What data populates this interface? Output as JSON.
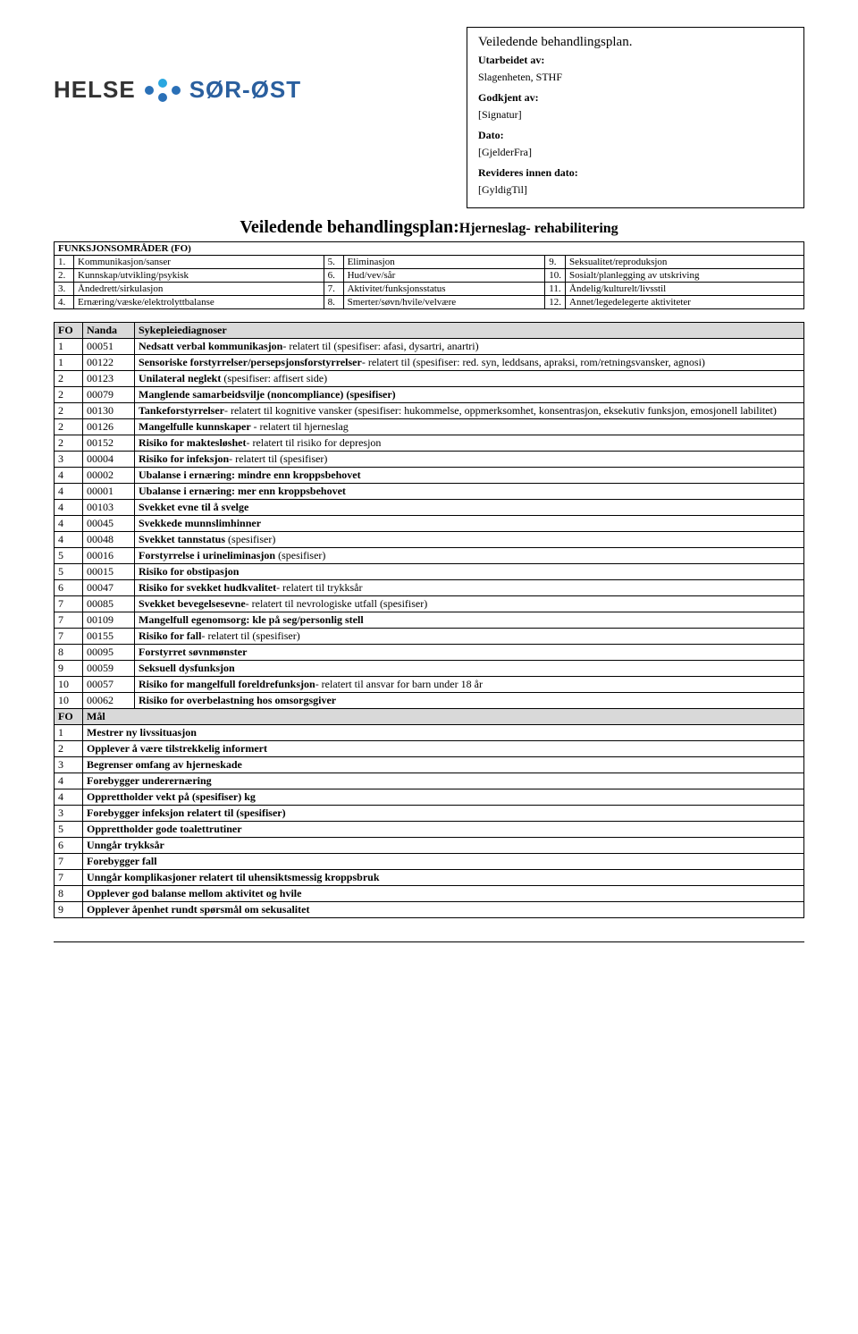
{
  "meta": {
    "title_line": "Veiledende behandlingsplan.",
    "utarbeidet_label": "Utarbeidet av:",
    "utarbeidet_val": "Slagenheten, STHF",
    "godkjent_label": "Godkjent av:",
    "godkjent_val": "[Signatur]",
    "dato_label": "Dato:",
    "dato_val": "[GjelderFra]",
    "revideres_label": "Revideres innen dato:",
    "revideres_val": "[GyldigTil]"
  },
  "logo": {
    "helse": "HELSE",
    "sorost": "SØR-ØST",
    "dot_colors": {
      "primary": "#2a70b7",
      "accent": "#2aa7e0"
    }
  },
  "main_title": {
    "prefix": "Veiledende behandlingsplan:",
    "suffix": "Hjerneslag- rehabilitering"
  },
  "fo_header": "FUNKSJONSOMRÅDER (FO)",
  "fo_rows": [
    [
      "1.",
      "Kommunikasjon/sanser",
      "5.",
      "Eliminasjon",
      "9.",
      "Seksualitet/reproduksjon"
    ],
    [
      "2.",
      "Kunnskap/utvikling/psykisk",
      "6.",
      "Hud/vev/sår",
      "10.",
      "Sosialt/planlegging av utskriving"
    ],
    [
      "3.",
      "Åndedrett/sirkulasjon",
      "7.",
      "Aktivitet/funksjonsstatus",
      "11.",
      "Åndelig/kulturelt/livsstil"
    ],
    [
      "4.",
      "Ernæring/væske/elektrolyttbalanse",
      "8.",
      "Smerter/søvn/hvile/velvære",
      "12.",
      "Annet/legedelegerte aktiviteter"
    ]
  ],
  "diag_headers": {
    "fo": "FO",
    "nanda": "Nanda",
    "syk": "Sykepleiediagnoser"
  },
  "diagnoses": [
    {
      "fo": "1",
      "code": "00051",
      "bold": "Nedsatt verbal kommunikasjon",
      "rest": "- relatert til (spesifiser: afasi, dysartri, anartri)"
    },
    {
      "fo": "1",
      "code": "00122",
      "bold": "Sensoriske forstyrrelser/persepsjonsforstyrrelser",
      "rest": "- relatert til (spesifiser: red. syn, leddsans, apraksi, rom/retningsvansker, agnosi)"
    },
    {
      "fo": "2",
      "code": "00123",
      "bold": "Unilateral neglekt ",
      "rest": "(spesifiser: affisert side)"
    },
    {
      "fo": "2",
      "code": "00079",
      "bold": "Manglende samarbeidsvilje (noncompliance) (spesifiser)",
      "rest": ""
    },
    {
      "fo": "2",
      "code": "00130",
      "bold": "Tankeforstyrrelser",
      "rest": "- relatert til kognitive vansker (spesifiser: hukommelse, oppmerksomhet, konsentrasjon, eksekutiv funksjon, emosjonell labilitet)"
    },
    {
      "fo": "2",
      "code": "00126",
      "bold": "Mangelfulle kunnskaper ",
      "rest": "- relatert til hjerneslag"
    },
    {
      "fo": "2",
      "code": "00152",
      "bold": "Risiko for maktesløshet",
      "rest": "- relatert til risiko for depresjon"
    },
    {
      "fo": "3",
      "code": "00004",
      "bold": "Risiko for infeksjon",
      "rest": "- relatert til (spesifiser)"
    },
    {
      "fo": "4",
      "code": "00002",
      "bold": "Ubalanse i ernæring: mindre enn kroppsbehovet",
      "rest": ""
    },
    {
      "fo": "4",
      "code": "00001",
      "bold": "Ubalanse i ernæring: mer enn kroppsbehovet",
      "rest": ""
    },
    {
      "fo": "4",
      "code": "00103",
      "bold": "Svekket evne til å svelge",
      "rest": ""
    },
    {
      "fo": "4",
      "code": "00045",
      "bold": "Svekkede munnslimhinner",
      "rest": ""
    },
    {
      "fo": "4",
      "code": "00048",
      "bold": "Svekket tannstatus ",
      "rest": "(spesifiser)"
    },
    {
      "fo": "5",
      "code": "00016",
      "bold": "Forstyrrelse i urineliminasjon ",
      "rest": "(spesifiser)"
    },
    {
      "fo": "5",
      "code": "00015",
      "bold": "Risiko for obstipasjon",
      "rest": ""
    },
    {
      "fo": "6",
      "code": "00047",
      "bold": "Risiko for svekket hudkvalitet",
      "rest": "- relatert til trykksår"
    },
    {
      "fo": "7",
      "code": "00085",
      "bold": "Svekket bevegelsesevne",
      "rest": "- relatert til nevrologiske utfall (spesifiser)"
    },
    {
      "fo": "7",
      "code": "00109",
      "bold": "Mangelfull egenomsorg: kle på seg/personlig stell",
      "rest": ""
    },
    {
      "fo": "7",
      "code": "00155",
      "bold": "Risiko for fall",
      "rest": "- relatert til (spesifiser)"
    },
    {
      "fo": "8",
      "code": "00095",
      "bold": "Forstyrret søvnmønster",
      "rest": ""
    },
    {
      "fo": "9",
      "code": "00059",
      "bold": "Seksuell dysfunksjon",
      "rest": ""
    },
    {
      "fo": "10",
      "code": "00057",
      "bold": "Risiko for mangelfull foreldrefunksjon",
      "rest": "- relatert til ansvar for barn under 18 år"
    },
    {
      "fo": "10",
      "code": "00062",
      "bold": "Risiko for overbelastning hos omsorgsgiver",
      "rest": ""
    }
  ],
  "maal_header": {
    "fo": "FO",
    "maal": "Mål"
  },
  "maal": [
    {
      "fo": "1",
      "text": "Mestrer ny livssituasjon"
    },
    {
      "fo": "2",
      "text": "Opplever å være tilstrekkelig informert"
    },
    {
      "fo": "3",
      "text": "Begrenser omfang av hjerneskade"
    },
    {
      "fo": "4",
      "text": "Forebygger underernæring"
    },
    {
      "fo": "4",
      "text": "Opprettholder vekt på (spesifiser) kg"
    },
    {
      "fo": "3",
      "text": "Forebygger infeksjon relatert til (spesifiser)"
    },
    {
      "fo": "5",
      "text": "Opprettholder gode toalettrutiner"
    },
    {
      "fo": "6",
      "text": "Unngår trykksår"
    },
    {
      "fo": "7",
      "text": "Forebygger fall"
    },
    {
      "fo": "7",
      "text": "Unngår komplikasjoner relatert til uhensiktsmessig kroppsbruk"
    },
    {
      "fo": "8",
      "text": "Opplever god balanse mellom aktivitet og hvile"
    },
    {
      "fo": "9",
      "text": "Opplever åpenhet rundt spørsmål om sekusalitet"
    }
  ]
}
